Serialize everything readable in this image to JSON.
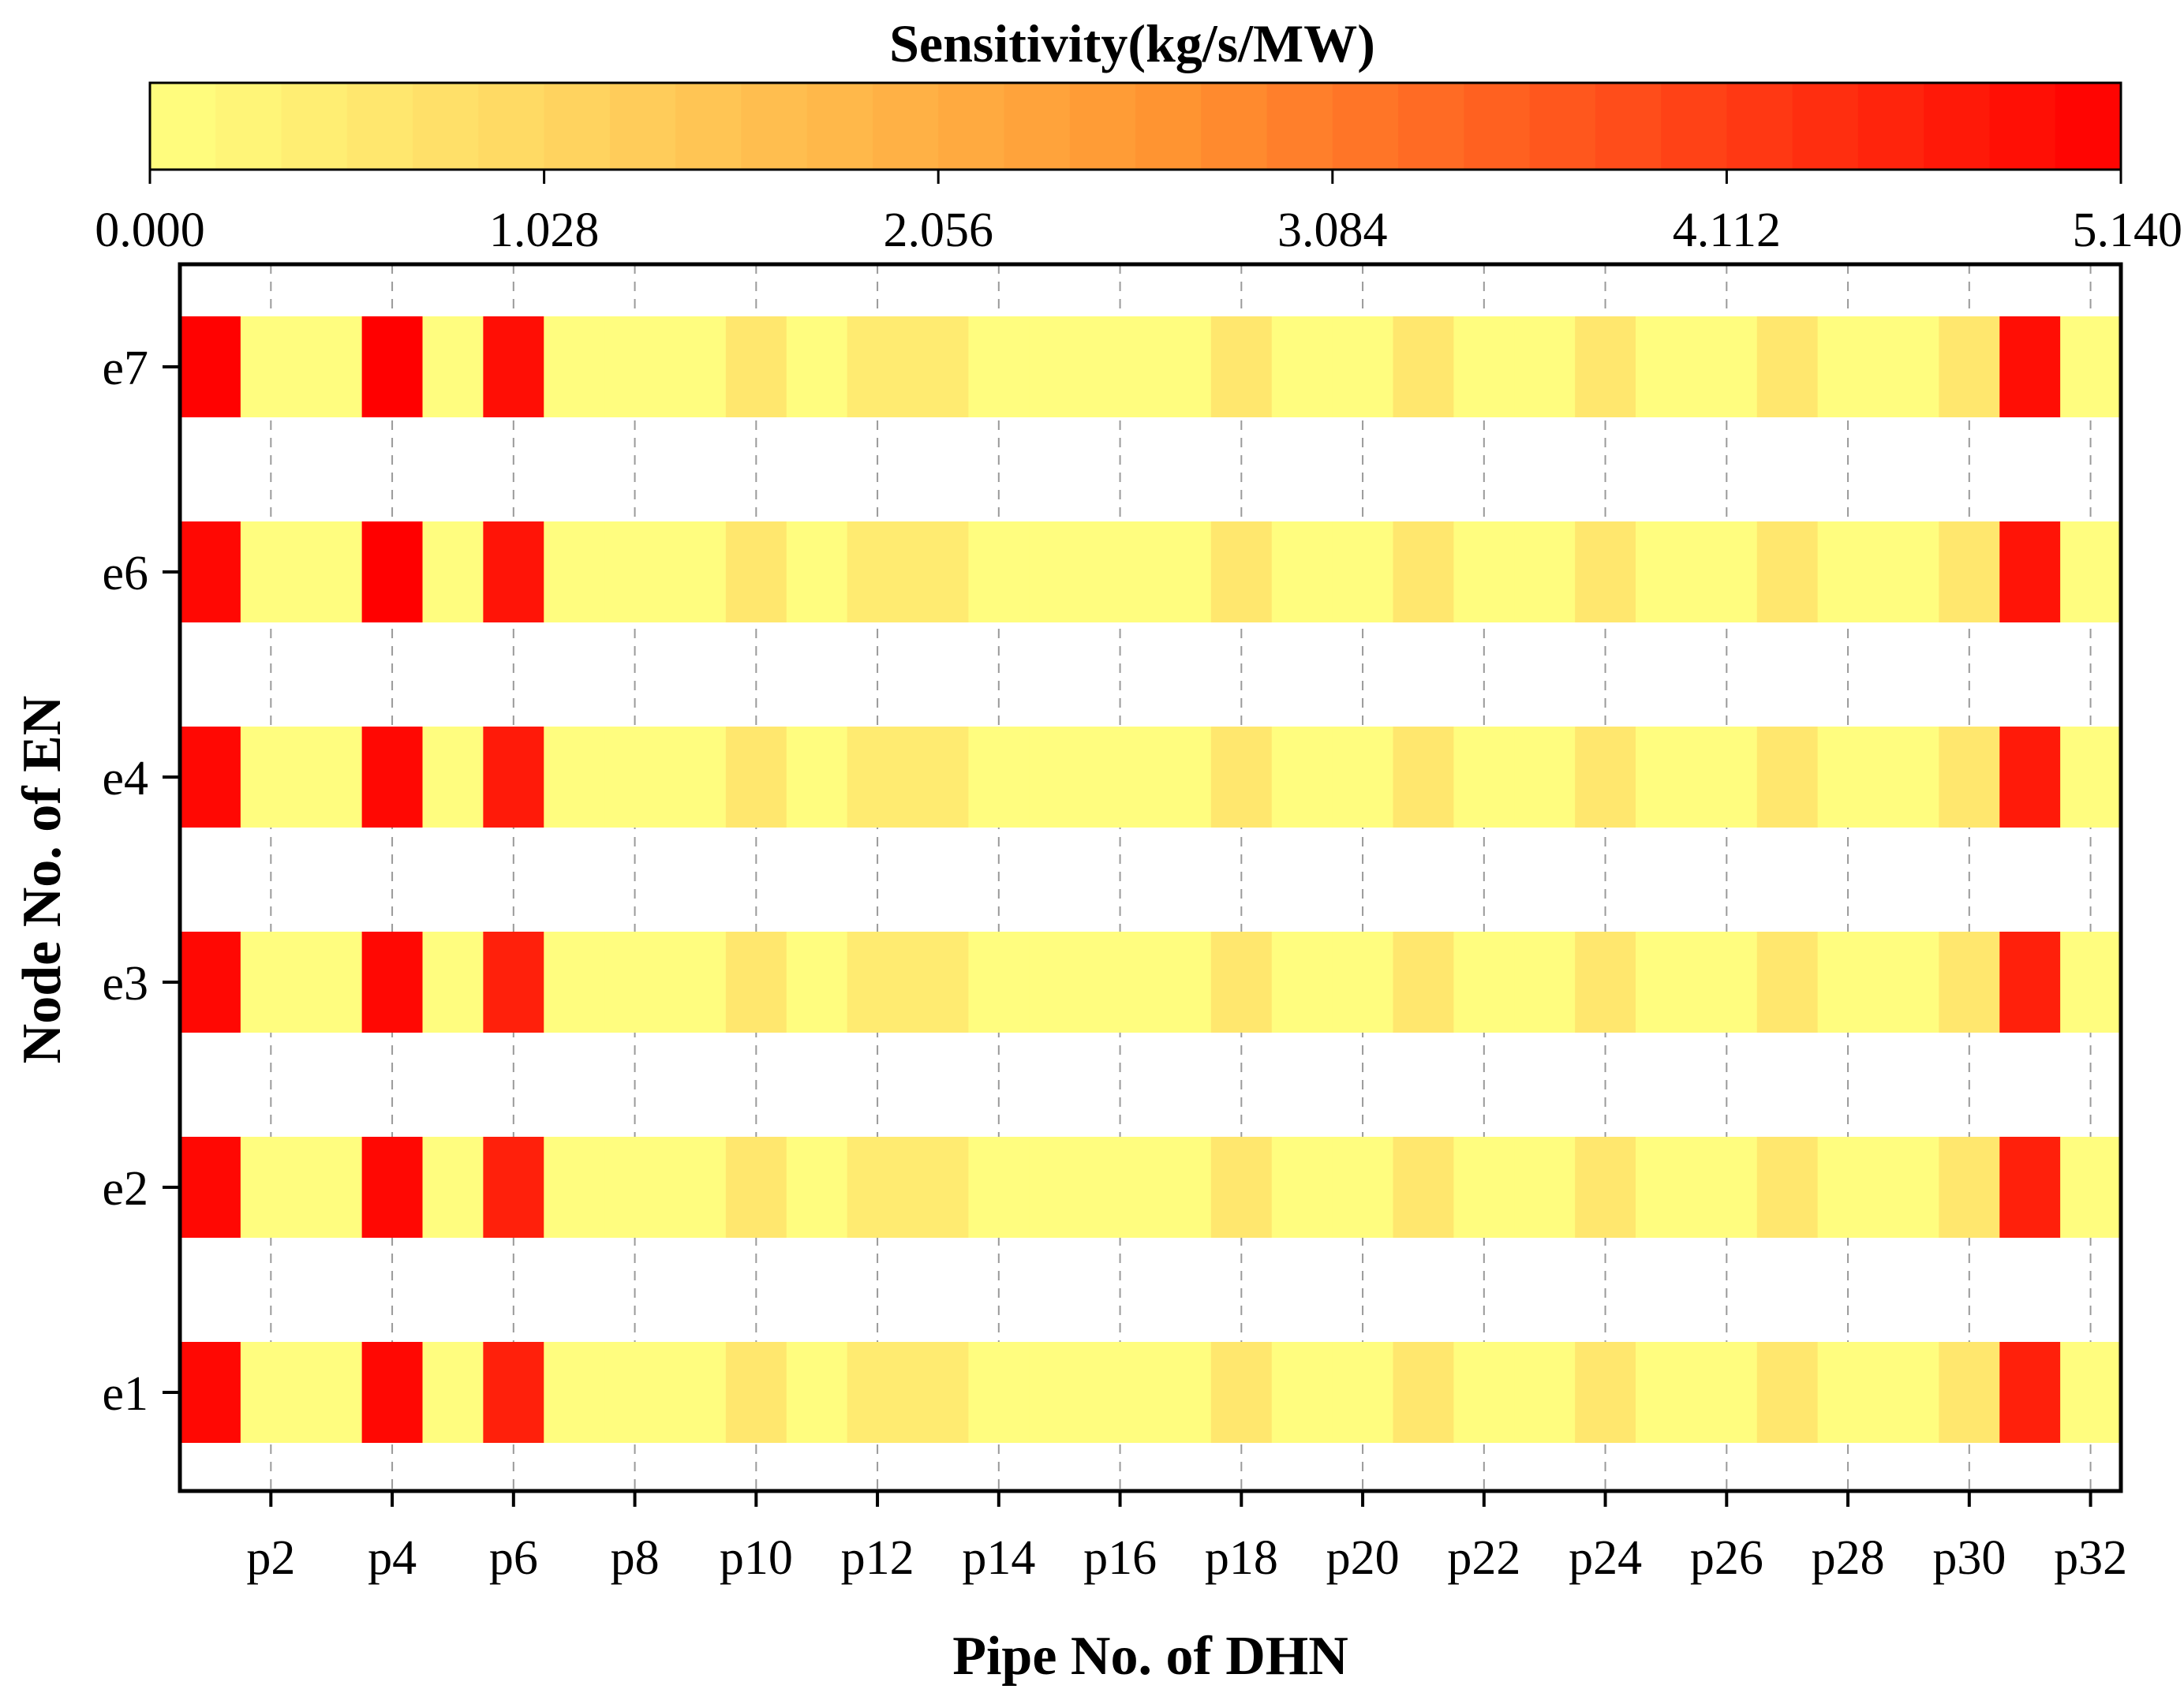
{
  "chart_data": {
    "type": "heatmap",
    "title": "Sensitivity(kg/s/MW)",
    "xlabel": "Pipe No. of DHN",
    "ylabel": "Node No. of EN",
    "colorbar": {
      "min": 0.0,
      "max": 5.14,
      "tick_labels": [
        "0.000",
        "1.028",
        "2.056",
        "3.084",
        "4.112",
        "5.140"
      ],
      "tick_values": [
        0.0,
        1.028,
        2.056,
        3.084,
        4.112,
        5.14
      ],
      "color_low": "#ffff80",
      "color_mid": "#ff9933",
      "color_high": "#ff0000"
    },
    "x_categories": [
      "p1",
      "p2",
      "p3",
      "p4",
      "p5",
      "p6",
      "p7",
      "p8",
      "p9",
      "p10",
      "p11",
      "p12",
      "p13",
      "p14",
      "p15",
      "p16",
      "p17",
      "p18",
      "p19",
      "p20",
      "p21",
      "p22",
      "p23",
      "p24",
      "p25",
      "p26",
      "p27",
      "p28",
      "p29",
      "p30",
      "p31",
      "p32"
    ],
    "x_tick_labels": [
      "p2",
      "p4",
      "p6",
      "p8",
      "p10",
      "p12",
      "p14",
      "p16",
      "p18",
      "p20",
      "p22",
      "p24",
      "p26",
      "p28",
      "p30",
      "p32"
    ],
    "y_categories": [
      "e1",
      "e2",
      "e3",
      "e4",
      "e6",
      "e7"
    ],
    "grid": "vertical dashed",
    "rows": [
      {
        "node": "e7",
        "values": [
          5.1,
          0.05,
          0.05,
          5.14,
          0.05,
          4.9,
          0.05,
          0.05,
          0.05,
          0.6,
          0.05,
          0.5,
          0.5,
          0.05,
          0.05,
          0.05,
          0.05,
          0.6,
          0.05,
          0.05,
          0.6,
          0.05,
          0.05,
          0.6,
          0.05,
          0.05,
          0.6,
          0.05,
          0.05,
          0.6,
          4.9,
          0.05
        ]
      },
      {
        "node": "e6",
        "values": [
          5.0,
          0.05,
          0.05,
          5.14,
          0.05,
          4.8,
          0.05,
          0.05,
          0.05,
          0.6,
          0.05,
          0.5,
          0.5,
          0.05,
          0.05,
          0.05,
          0.05,
          0.6,
          0.05,
          0.05,
          0.6,
          0.05,
          0.05,
          0.6,
          0.05,
          0.05,
          0.6,
          0.05,
          0.05,
          0.6,
          4.8,
          0.05
        ]
      },
      {
        "node": "e4",
        "values": [
          5.0,
          0.05,
          0.05,
          5.0,
          0.05,
          4.7,
          0.05,
          0.05,
          0.05,
          0.6,
          0.05,
          0.5,
          0.5,
          0.05,
          0.05,
          0.05,
          0.05,
          0.6,
          0.05,
          0.05,
          0.6,
          0.05,
          0.05,
          0.6,
          0.05,
          0.05,
          0.6,
          0.05,
          0.05,
          0.6,
          4.7,
          0.05
        ]
      },
      {
        "node": "e3",
        "values": [
          5.0,
          0.05,
          0.05,
          5.0,
          0.05,
          4.6,
          0.05,
          0.05,
          0.05,
          0.6,
          0.05,
          0.5,
          0.5,
          0.05,
          0.05,
          0.05,
          0.05,
          0.6,
          0.05,
          0.05,
          0.6,
          0.05,
          0.05,
          0.6,
          0.05,
          0.05,
          0.6,
          0.05,
          0.05,
          0.6,
          4.6,
          0.05
        ]
      },
      {
        "node": "e2",
        "values": [
          5.0,
          0.05,
          0.05,
          5.0,
          0.05,
          4.6,
          0.05,
          0.05,
          0.05,
          0.6,
          0.05,
          0.5,
          0.5,
          0.05,
          0.05,
          0.05,
          0.05,
          0.6,
          0.05,
          0.05,
          0.6,
          0.05,
          0.05,
          0.6,
          0.05,
          0.05,
          0.6,
          0.05,
          0.05,
          0.6,
          4.6,
          0.05
        ]
      },
      {
        "node": "e1",
        "values": [
          5.0,
          0.05,
          0.05,
          5.0,
          0.05,
          4.6,
          0.05,
          0.05,
          0.05,
          0.6,
          0.05,
          0.5,
          0.5,
          0.05,
          0.05,
          0.05,
          0.05,
          0.6,
          0.05,
          0.05,
          0.6,
          0.05,
          0.05,
          0.6,
          0.05,
          0.05,
          0.6,
          0.05,
          0.05,
          0.6,
          4.6,
          0.05
        ]
      }
    ]
  }
}
